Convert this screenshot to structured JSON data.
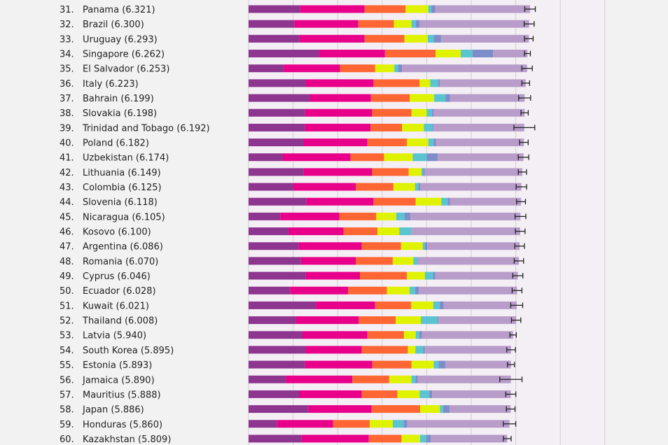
{
  "chart_data": {
    "type": "bar",
    "orientation": "horizontal",
    "stacked": true,
    "xlim": [
      0,
      8
    ],
    "grid": true,
    "segment_colors": [
      "#8e3590",
      "#e8008a",
      "#ff6633",
      "#dff200",
      "#5bc4d1",
      "#7b8ec8",
      "#b89dcb"
    ],
    "rows": [
      {
        "rank": "31.",
        "label": "Panama (6.321)",
        "score": 6.321,
        "segments": [
          1.158,
          1.447,
          0.921,
          0.511,
          0.068,
          0.09,
          2.126
        ],
        "ci": [
          6.203,
          6.439
        ]
      },
      {
        "rank": "32.",
        "label": "Brazil (6.300)",
        "score": 6.3,
        "segments": [
          1.026,
          1.437,
          0.8,
          0.395,
          0.095,
          0.089,
          2.458
        ],
        "ci": [
          6.187,
          6.413
        ]
      },
      {
        "rank": "33.",
        "label": "Uruguay (6.293)",
        "score": 6.293,
        "segments": [
          1.142,
          1.463,
          0.895,
          0.526,
          0.132,
          0.158,
          1.977
        ],
        "ci": [
          6.196,
          6.39
        ]
      },
      {
        "rank": "34.",
        "label": "Singapore (6.262)",
        "score": 6.262,
        "segments": [
          1.579,
          1.484,
          1.137,
          0.563,
          0.263,
          0.463,
          0.773
        ],
        "ci": [
          6.196,
          6.328
        ]
      },
      {
        "rank": "35.",
        "label": "El Salvador (6.253)",
        "score": 6.253,
        "segments": [
          0.789,
          1.264,
          0.789,
          0.432,
          0.084,
          0.089,
          2.806
        ],
        "ci": [
          6.135,
          6.371
        ]
      },
      {
        "rank": "36.",
        "label": "Italy (6.223)",
        "score": 6.223,
        "segments": [
          1.289,
          1.516,
          1.037,
          0.237,
          0.184,
          0.03,
          1.93
        ],
        "ci": [
          6.136,
          6.31
        ]
      },
      {
        "rank": "37.",
        "label": "Bahrain (6.199)",
        "score": 6.199,
        "segments": [
          1.384,
          1.363,
          0.874,
          0.547,
          0.253,
          0.105,
          1.673
        ],
        "ci": [
          6.065,
          6.333
        ]
      },
      {
        "rank": "38.",
        "label": "Slovakia (6.198)",
        "score": 6.198,
        "segments": [
          1.263,
          1.511,
          0.884,
          0.342,
          0.121,
          0.03,
          2.047
        ],
        "ci": [
          6.116,
          6.28
        ]
      },
      {
        "rank": "39.",
        "label": "Trinidad and Tobago (6.192)",
        "score": 6.192,
        "segments": [
          1.263,
          1.474,
          0.71,
          0.49,
          0.195,
          0.02,
          2.04
        ],
        "ci": [
          5.958,
          6.426
        ]
      },
      {
        "rank": "40.",
        "label": "Poland (6.182)",
        "score": 6.182,
        "segments": [
          1.226,
          1.442,
          0.885,
          0.484,
          0.121,
          0.053,
          1.971
        ],
        "ci": [
          6.085,
          6.279
        ]
      },
      {
        "rank": "41.",
        "label": "Uzbekistan (6.174)",
        "score": 6.174,
        "segments": [
          0.763,
          1.526,
          0.753,
          0.642,
          0.316,
          0.247,
          1.927
        ],
        "ci": [
          6.056,
          6.292
        ]
      },
      {
        "rank": "42.",
        "label": "Lithuania (6.149)",
        "score": 6.149,
        "segments": [
          1.237,
          1.537,
          0.821,
          0.289,
          0.037,
          0.037,
          2.191
        ],
        "ci": [
          6.057,
          6.241
        ]
      },
      {
        "rank": "43.",
        "label": "Colombia (6.125)",
        "score": 6.125,
        "segments": [
          1.0,
          1.411,
          0.842,
          0.484,
          0.079,
          0.042,
          2.267
        ],
        "ci": [
          6.007,
          6.243
        ]
      },
      {
        "rank": "44.",
        "label": "Slovenia (6.118)",
        "score": 6.118,
        "segments": [
          1.3,
          1.505,
          0.948,
          0.573,
          0.148,
          0.052,
          1.592
        ],
        "ci": [
          6.018,
          6.218
        ]
      },
      {
        "rank": "45.",
        "label": "Nicaragua (6.105)",
        "score": 6.105,
        "segments": [
          0.711,
          1.326,
          0.831,
          0.448,
          0.184,
          0.132,
          2.473
        ],
        "ci": [
          5.984,
          6.226
        ]
      },
      {
        "rank": "46.",
        "label": "Kosovo (6.100)",
        "score": 6.1,
        "segments": [
          0.895,
          1.237,
          0.763,
          0.489,
          0.274,
          0.01,
          2.432
        ],
        "ci": [
          5.992,
          6.208
        ]
      },
      {
        "rank": "47.",
        "label": "Argentina (6.086)",
        "score": 6.086,
        "segments": [
          1.121,
          1.421,
          0.879,
          0.49,
          0.047,
          0.053,
          2.075
        ],
        "ci": [
          5.978,
          6.194
        ]
      },
      {
        "rank": "48.",
        "label": "Romania (6.070)",
        "score": 6.07,
        "segments": [
          1.174,
          1.237,
          0.826,
          0.463,
          0.089,
          0.01,
          2.271
        ],
        "ci": [
          5.965,
          6.175
        ]
      },
      {
        "rank": "49.",
        "label": "Cyprus (6.046)",
        "score": 6.046,
        "segments": [
          1.279,
          1.221,
          1.053,
          0.405,
          0.184,
          0.053,
          1.851
        ],
        "ci": [
          5.933,
          6.159
        ]
      },
      {
        "rank": "50.",
        "label": "Ecuador (6.028)",
        "score": 6.028,
        "segments": [
          0.932,
          1.305,
          0.868,
          0.511,
          0.121,
          0.089,
          2.202
        ],
        "ci": [
          5.918,
          6.138
        ]
      },
      {
        "rank": "51.",
        "label": "Kuwait (6.021)",
        "score": 6.021,
        "segments": [
          1.511,
          1.331,
          0.805,
          0.5,
          0.142,
          0.095,
          1.637
        ],
        "ci": [
          5.887,
          6.155
        ]
      },
      {
        "rank": "52.",
        "label": "Thailand (6.008)",
        "score": 6.008,
        "segments": [
          1.068,
          1.406,
          0.831,
          0.563,
          0.369,
          0.02,
          1.751
        ],
        "ci": [
          5.903,
          6.113
        ]
      },
      {
        "rank": "53.",
        "label": "Latvia (5.940)",
        "score": 5.94,
        "segments": [
          1.211,
          1.457,
          0.821,
          0.264,
          0.079,
          0.063,
          2.045
        ],
        "ci": [
          5.869,
          6.011
        ]
      },
      {
        "rank": "54.",
        "label": "South Korea (5.895)",
        "score": 5.895,
        "segments": [
          1.289,
          1.253,
          1.037,
          0.168,
          0.174,
          0.037,
          1.937
        ],
        "ci": [
          5.798,
          5.992
        ]
      },
      {
        "rank": "55.",
        "label": "Estonia (5.893)",
        "score": 5.893,
        "segments": [
          1.263,
          1.516,
          0.879,
          0.5,
          0.105,
          0.158,
          1.472
        ],
        "ci": [
          5.814,
          5.972
        ]
      },
      {
        "rank": "56.",
        "label": "Jamaica (5.890)",
        "score": 5.89,
        "segments": [
          0.842,
          1.49,
          0.826,
          0.5,
          0.089,
          0.053,
          2.09
        ],
        "ci": [
          5.64,
          6.14
        ]
      },
      {
        "rank": "57.",
        "label": "Mauritius (5.888)",
        "score": 5.888,
        "segments": [
          1.132,
          1.41,
          0.8,
          0.5,
          0.211,
          0.068,
          1.767
        ],
        "ci": [
          5.775,
          6.001
        ]
      },
      {
        "rank": "58.",
        "label": "Japan (5.886)",
        "score": 5.886,
        "segments": [
          1.342,
          1.421,
          1.09,
          0.447,
          0.068,
          0.148,
          1.37
        ],
        "ci": [
          5.789,
          5.983
        ]
      },
      {
        "rank": "59.",
        "label": "Honduras (5.860)",
        "score": 5.86,
        "segments": [
          0.632,
          1.263,
          0.826,
          0.516,
          0.247,
          0.079,
          2.297
        ],
        "ci": [
          5.721,
          5.999
        ]
      },
      {
        "rank": "60.",
        "label": "Kazakhstan (5.809)",
        "score": 5.809,
        "segments": [
          1.184,
          1.516,
          0.732,
          0.421,
          0.136,
          0.105,
          1.714
        ],
        "ci": [
          5.722,
          5.896
        ]
      }
    ]
  }
}
